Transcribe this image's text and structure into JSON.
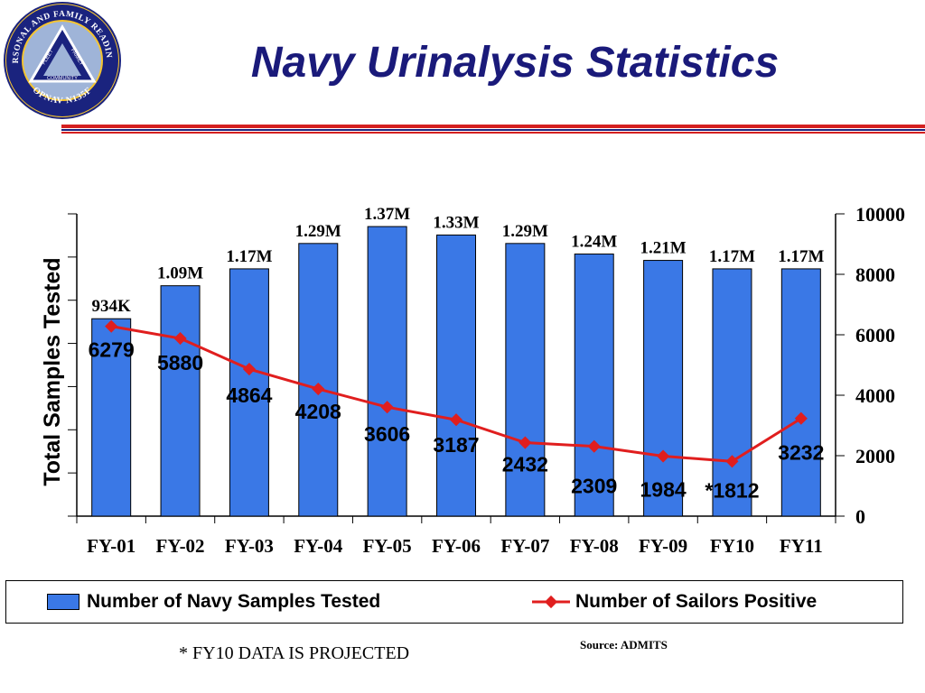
{
  "header": {
    "title": "Navy Urinalysis Statistics",
    "logo_text_top": "PERSONAL AND FAMILY READINESS",
    "logo_text_bottom": "OPNAV N135F",
    "logo_inner_left": "FLEET",
    "logo_inner_right": "FAMILY",
    "logo_inner_bottom": "COMMUNITY"
  },
  "colors": {
    "bar": "#3a78e6",
    "line": "#e01e1e",
    "title": "#1a1a7a",
    "rule_red": "#d42020",
    "rule_blue": "#1a237e"
  },
  "chart_data": {
    "type": "bar",
    "categories": [
      "FY-01",
      "FY-02",
      "FY-03",
      "FY-04",
      "FY-05",
      "FY-06",
      "FY-07",
      "FY-08",
      "FY-09",
      "FY10",
      "FY11"
    ],
    "ylabel": "Total Samples Tested",
    "y2_ticks": [
      "0",
      "2000",
      "4000",
      "6000",
      "8000",
      "10000"
    ],
    "y2lim": [
      0,
      10000
    ],
    "ylim": [
      0,
      1400000
    ],
    "series": [
      {
        "name": "Number of Navy Samples Tested",
        "type": "bar",
        "axis": "left",
        "values": [
          934000,
          1090000,
          1170000,
          1290000,
          1370000,
          1330000,
          1290000,
          1240000,
          1210000,
          1170000,
          1170000
        ],
        "labels": [
          "934K",
          "1.09M",
          "1.17M",
          "1.29M",
          "1.37M",
          "1.33M",
          "1.29M",
          "1.24M",
          "1.21M",
          "1.17M",
          "1.17M"
        ]
      },
      {
        "name": "Number of Sailors Positive",
        "type": "line",
        "axis": "right",
        "values": [
          6279,
          5880,
          4864,
          4208,
          3606,
          3187,
          2432,
          2309,
          1984,
          1812,
          3232
        ],
        "labels": [
          "6279",
          "5880",
          "4864",
          "4208",
          "3606",
          "3187",
          "2432",
          "2309",
          "1984",
          "*1812",
          "3232"
        ]
      }
    ],
    "legend_position": "bottom"
  },
  "footnote": "* FY10 DATA IS PROJECTED",
  "source": "Source: ADMITS"
}
